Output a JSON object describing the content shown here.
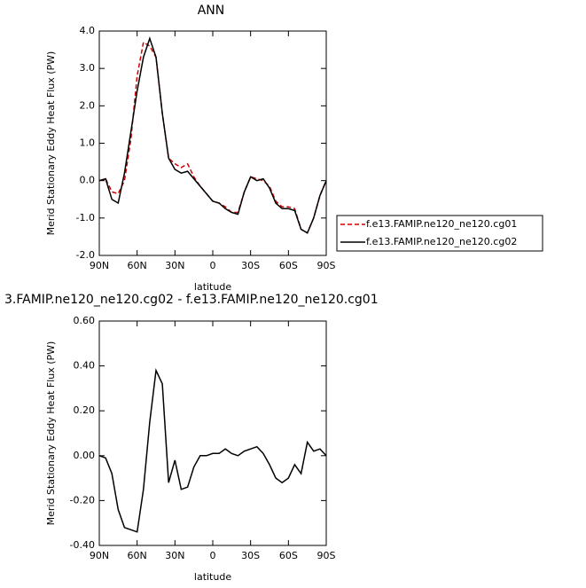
{
  "chart_data": [
    {
      "type": "line",
      "title": "ANN",
      "xlabel": "latitude",
      "ylabel": "Merid Stationary Eddy Heat Flux (PW)",
      "x": [
        90,
        85,
        80,
        75,
        70,
        65,
        60,
        55,
        50,
        45,
        40,
        35,
        30,
        25,
        20,
        15,
        10,
        5,
        0,
        -5,
        -10,
        -15,
        -20,
        -25,
        -30,
        -35,
        -40,
        -45,
        -50,
        -55,
        -60,
        -65,
        -70,
        -75,
        -80,
        -85,
        -90
      ],
      "series": [
        {
          "name": "f.e13.FAMIP.ne120_ne120.cg01",
          "color": "#cc0000",
          "dash": true,
          "values": [
            0.0,
            0.05,
            -0.3,
            -0.35,
            0.0,
            1.1,
            2.8,
            3.7,
            3.6,
            3.3,
            1.8,
            0.6,
            0.45,
            0.35,
            0.45,
            0.1,
            -0.15,
            -0.35,
            -0.55,
            -0.6,
            -0.7,
            -0.85,
            -0.85,
            -0.3,
            0.1,
            0.05,
            0.0,
            -0.15,
            -0.55,
            -0.7,
            -0.7,
            -0.75,
            -1.3,
            -1.4,
            -1.0,
            -0.4,
            0.0
          ]
        },
        {
          "name": "f.e13.FAMIP.ne120_ne120.cg02",
          "color": "#000000",
          "dash": false,
          "values": [
            0.0,
            0.05,
            -0.5,
            -0.6,
            0.2,
            1.3,
            2.4,
            3.3,
            3.8,
            3.3,
            1.8,
            0.6,
            0.3,
            0.2,
            0.25,
            0.05,
            -0.15,
            -0.35,
            -0.55,
            -0.6,
            -0.75,
            -0.85,
            -0.9,
            -0.3,
            0.1,
            0.0,
            0.05,
            -0.2,
            -0.6,
            -0.75,
            -0.75,
            -0.8,
            -1.3,
            -1.4,
            -1.0,
            -0.4,
            0.0
          ]
        }
      ],
      "xlim": [
        90,
        -90
      ],
      "xticks": [
        {
          "value": 90,
          "label": "90N"
        },
        {
          "value": 60,
          "label": "60N"
        },
        {
          "value": 30,
          "label": "30N"
        },
        0,
        {
          "value": -30,
          "label": "30S"
        },
        {
          "value": -60,
          "label": "60S"
        },
        {
          "value": -90,
          "label": "90S"
        }
      ],
      "ylim": [
        -2,
        4
      ],
      "yticks": [
        {
          "value": -2,
          "label": "-2.0"
        },
        {
          "value": -1,
          "label": "-1.0"
        },
        {
          "value": 0,
          "label": "0.0"
        },
        {
          "value": 1,
          "label": "1.0"
        },
        {
          "value": 2,
          "label": "2.0"
        },
        {
          "value": 3,
          "label": "3.0"
        },
        {
          "value": 4,
          "label": "4.0"
        }
      ],
      "legend": "right"
    },
    {
      "type": "line",
      "title": "3.FAMIP.ne120_ne120.cg02 - f.e13.FAMIP.ne120_ne120.cg01",
      "xlabel": "latitude",
      "ylabel": "Merid Stationary Eddy Heat Flux (PW)",
      "x": [
        90,
        85,
        80,
        75,
        70,
        65,
        60,
        55,
        50,
        45,
        40,
        35,
        30,
        25,
        20,
        15,
        10,
        5,
        0,
        -5,
        -10,
        -15,
        -20,
        -25,
        -30,
        -35,
        -40,
        -45,
        -50,
        -55,
        -60,
        -65,
        -70,
        -75,
        -80,
        -85,
        -90
      ],
      "series": [
        {
          "color": "#000000",
          "dash": false,
          "values": [
            0.0,
            -0.01,
            -0.08,
            -0.24,
            -0.32,
            -0.33,
            -0.34,
            -0.15,
            0.15,
            0.38,
            0.32,
            -0.12,
            -0.02,
            -0.15,
            -0.14,
            -0.05,
            0.0,
            0.0,
            0.01,
            0.01,
            0.03,
            0.01,
            0.0,
            0.02,
            0.03,
            0.04,
            0.01,
            -0.04,
            -0.1,
            -0.12,
            -0.1,
            -0.04,
            -0.08,
            0.06,
            0.02,
            0.03,
            0.0
          ]
        }
      ],
      "xlim": [
        90,
        -90
      ],
      "xticks": [
        {
          "value": 90,
          "label": "90N"
        },
        {
          "value": 60,
          "label": "60N"
        },
        {
          "value": 30,
          "label": "30N"
        },
        0,
        {
          "value": -30,
          "label": "30S"
        },
        {
          "value": -60,
          "label": "60S"
        },
        {
          "value": -90,
          "label": "90S"
        }
      ],
      "ylim": [
        -0.4,
        0.6
      ],
      "yticks": [
        {
          "value": -0.4,
          "label": "-0.40"
        },
        {
          "value": -0.2,
          "label": "-0.20"
        },
        {
          "value": 0,
          "label": "0.00"
        },
        {
          "value": 0.2,
          "label": "0.20"
        },
        {
          "value": 0.4,
          "label": "0.40"
        },
        {
          "value": 0.6,
          "label": "0.60"
        }
      ]
    }
  ]
}
